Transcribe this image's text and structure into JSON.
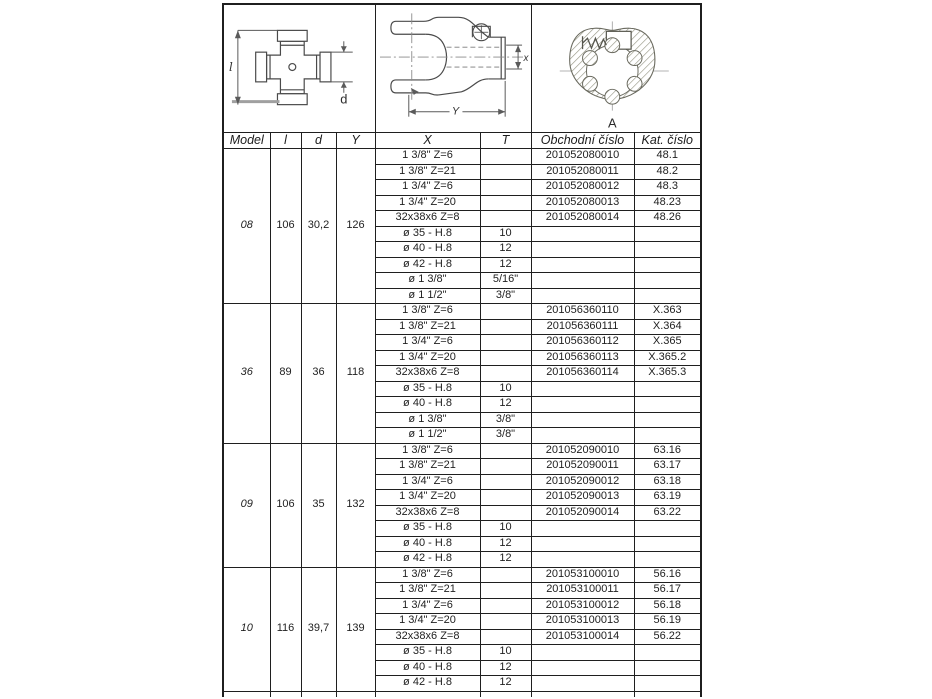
{
  "page": {
    "paper_color": "#ffffff",
    "ink_color": "#1f1f1f"
  },
  "diagrams": {
    "cross": {
      "length_label": "l",
      "diameter_label": "d"
    },
    "yoke": {
      "x_label": "x",
      "y_label": "Y"
    },
    "section": {
      "view_label": "A"
    }
  },
  "table": {
    "headers": [
      "Model",
      "l",
      "d",
      "Y",
      "X",
      "T",
      "Obchodní číslo",
      "Kat. číslo"
    ],
    "groups": [
      {
        "model": "08",
        "l": "106",
        "d": "30,2",
        "Y": "126",
        "rows": [
          [
            "1 3/8\" Z=6",
            "",
            "201052080010",
            "48.1"
          ],
          [
            "1 3/8\" Z=21",
            "",
            "201052080011",
            "48.2"
          ],
          [
            "1 3/4\" Z=6",
            "",
            "201052080012",
            "48.3"
          ],
          [
            "1 3/4\" Z=20",
            "",
            "201052080013",
            "48.23"
          ],
          [
            "32x38x6 Z=8",
            "",
            "201052080014",
            "48.26"
          ],
          [
            "ø 35 - H.8",
            "10",
            "",
            ""
          ],
          [
            "ø 40 - H.8",
            "12",
            "",
            ""
          ],
          [
            "ø 42 - H.8",
            "12",
            "",
            ""
          ],
          [
            "ø 1 3/8\"",
            "5/16\"",
            "",
            ""
          ],
          [
            "ø 1 1/2\"",
            "3/8\"",
            "",
            ""
          ]
        ]
      },
      {
        "model": "36",
        "l": "89",
        "d": "36",
        "Y": "118",
        "rows": [
          [
            "1 3/8\" Z=6",
            "",
            "201056360110",
            "X.363"
          ],
          [
            "1 3/8\" Z=21",
            "",
            "201056360111",
            "X.364"
          ],
          [
            "1 3/4\" Z=6",
            "",
            "201056360112",
            "X.365"
          ],
          [
            "1 3/4\" Z=20",
            "",
            "201056360113",
            "X.365.2"
          ],
          [
            "32x38x6 Z=8",
            "",
            "201056360114",
            "X.365.3"
          ],
          [
            "ø 35 - H.8",
            "10",
            "",
            ""
          ],
          [
            "ø 40 - H.8",
            "12",
            "",
            ""
          ],
          [
            "ø 1 3/8\"",
            "3/8\"",
            "",
            ""
          ],
          [
            "ø 1 1/2\"",
            "3/8\"",
            "",
            ""
          ]
        ]
      },
      {
        "model": "09",
        "l": "106",
        "d": "35",
        "Y": "132",
        "rows": [
          [
            "1 3/8\" Z=6",
            "",
            "201052090010",
            "63.16"
          ],
          [
            "1 3/8\" Z=21",
            "",
            "201052090011",
            "63.17"
          ],
          [
            "1 3/4\" Z=6",
            "",
            "201052090012",
            "63.18"
          ],
          [
            "1 3/4\" Z=20",
            "",
            "201052090013",
            "63.19"
          ],
          [
            "32x38x6 Z=8",
            "",
            "201052090014",
            "63.22"
          ],
          [
            "ø 35 - H.8",
            "10",
            "",
            ""
          ],
          [
            "ø 40 - H.8",
            "12",
            "",
            ""
          ],
          [
            "ø 42 - H.8",
            "12",
            "",
            ""
          ]
        ]
      },
      {
        "model": "10",
        "l": "116",
        "d": "39,7",
        "Y": "139",
        "rows": [
          [
            "1 3/8\" Z=6",
            "",
            "201053100010",
            "56.16"
          ],
          [
            "1 3/8\" Z=21",
            "",
            "201053100011",
            "56.17"
          ],
          [
            "1 3/4\" Z=6",
            "",
            "201053100012",
            "56.18"
          ],
          [
            "1 3/4\" Z=20",
            "",
            "201053100013",
            "56.19"
          ],
          [
            "32x38x6 Z=8",
            "",
            "201053100014",
            "56.22"
          ],
          [
            "ø 35 - H.8",
            "10",
            "",
            ""
          ],
          [
            "ø 40 - H.8",
            "12",
            "",
            ""
          ],
          [
            "ø 42 - H.8",
            "12",
            "",
            ""
          ]
        ]
      }
    ]
  }
}
